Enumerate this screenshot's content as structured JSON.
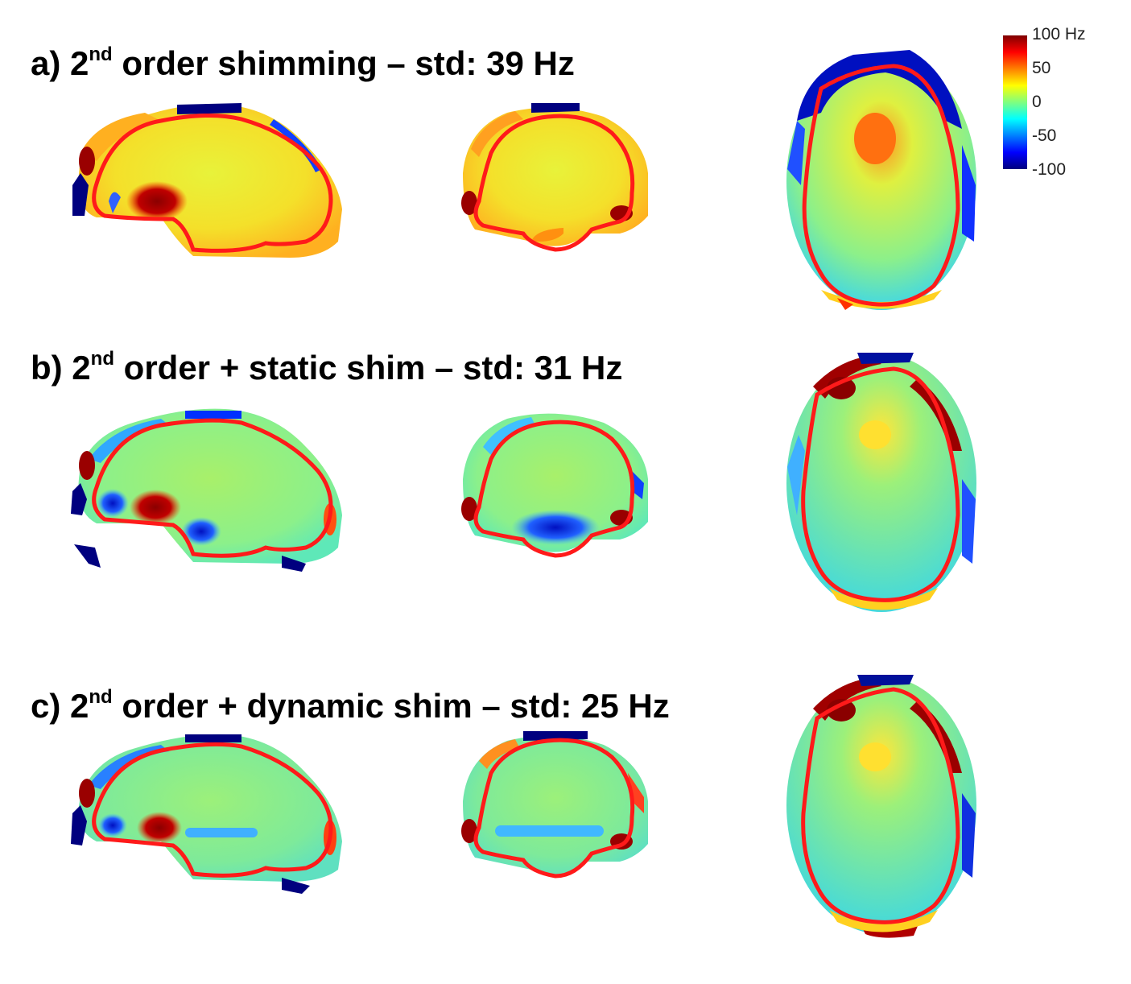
{
  "figure": {
    "rows": [
      {
        "id": "a",
        "label_prefix": "a) 2",
        "label_sup": "nd",
        "label_suffix": " order shimming – std: 39 Hz",
        "std_hz": 39
      },
      {
        "id": "b",
        "label_prefix": "b) 2",
        "label_sup": "nd",
        "label_suffix": " order + static shim – std: 31 Hz",
        "std_hz": 31
      },
      {
        "id": "c",
        "label_prefix": "c) 2",
        "label_sup": "nd",
        "label_suffix": " order + dynamic shim – std: 25 Hz",
        "std_hz": 25
      }
    ],
    "views": [
      "sagittal",
      "coronal",
      "axial"
    ],
    "colorbar": {
      "colormap": "jet",
      "min": -100,
      "max": 100,
      "labels": [
        "100 Hz",
        "50",
        "0",
        "-50",
        "-100"
      ]
    },
    "contour_color": "#ff1a1a"
  }
}
